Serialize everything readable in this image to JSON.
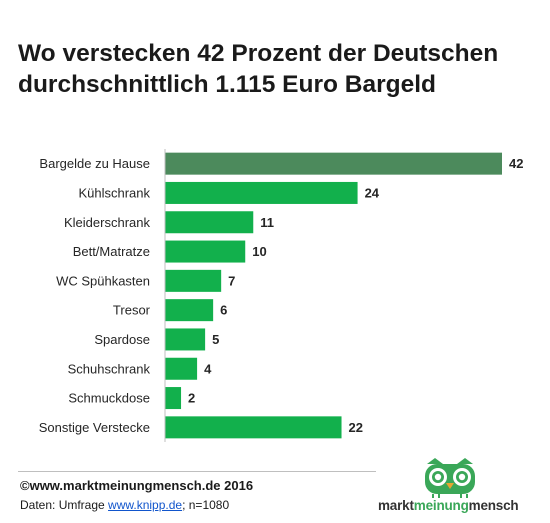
{
  "title": {
    "line1": "Wo verstecken 42 Prozent der Deutschen",
    "line2": "durchschnittlich 1.115 Euro Bargeld"
  },
  "chart_data": {
    "type": "bar",
    "orientation": "horizontal",
    "categories": [
      "Bargelde zu Hause",
      "Kühlschrank",
      "Kleiderschrank",
      "Bett/Matratze",
      "WC Spühkasten",
      "Tresor",
      "Spardose",
      "Schuhschrank",
      "Schmuckdose",
      "Sonstige Verstecke"
    ],
    "values": [
      42,
      24,
      11,
      10,
      7,
      6,
      5,
      4,
      2,
      22
    ],
    "xlim": [
      0,
      42
    ],
    "grid": false,
    "colors": {
      "highlight": "#4c8a5c",
      "bar": "#12b04c"
    }
  },
  "footer": {
    "copyright": "©www.marktmeinungmensch.de  2016",
    "source_prefix": "Daten: Umfrage ",
    "source_link": "www.knipp.de",
    "source_suffix": "; n=1080"
  },
  "logo": {
    "icon": "owl-icon",
    "word1": "markt",
    "word2": "meinung",
    "word3": "mensch"
  }
}
